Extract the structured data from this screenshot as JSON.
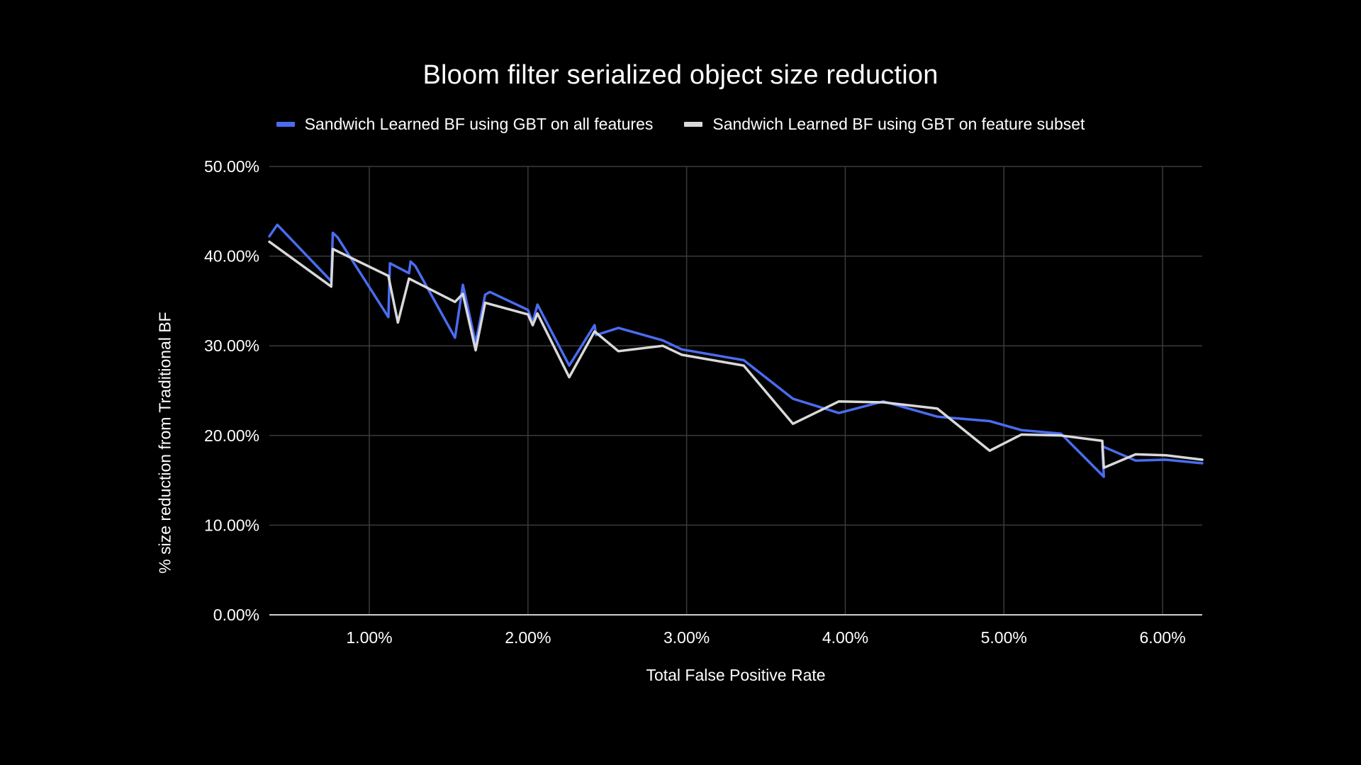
{
  "chart_data": {
    "type": "line",
    "title": "Bloom filter serialized object size reduction",
    "xlabel": "Total False Positive Rate",
    "ylabel": "% size reduction from Traditional BF",
    "xlim": [
      0.0037,
      0.0625
    ],
    "ylim": [
      0,
      0.5
    ],
    "x_ticks": [
      0.01,
      0.02,
      0.03,
      0.04,
      0.05,
      0.06
    ],
    "x_tick_labels": [
      "1.00%",
      "2.00%",
      "3.00%",
      "4.00%",
      "5.00%",
      "6.00%"
    ],
    "y_ticks": [
      0,
      0.1,
      0.2,
      0.3,
      0.4,
      0.5
    ],
    "y_tick_labels": [
      "0.00%",
      "10.00%",
      "20.00%",
      "30.00%",
      "40.00%",
      "50.00%"
    ],
    "grid": true,
    "legend_position": "top-center",
    "series": [
      {
        "name": "Sandwich Learned BF using GBT on all features",
        "color": "#4a6cf0",
        "points": [
          [
            0.0037,
            0.422
          ],
          [
            0.0042,
            0.435
          ],
          [
            0.0076,
            0.372
          ],
          [
            0.0077,
            0.426
          ],
          [
            0.008,
            0.421
          ],
          [
            0.0112,
            0.332
          ],
          [
            0.0113,
            0.392
          ],
          [
            0.0125,
            0.381
          ],
          [
            0.0126,
            0.394
          ],
          [
            0.0129,
            0.389
          ],
          [
            0.0154,
            0.309
          ],
          [
            0.0159,
            0.368
          ],
          [
            0.0167,
            0.303
          ],
          [
            0.0173,
            0.357
          ],
          [
            0.0176,
            0.36
          ],
          [
            0.02,
            0.34
          ],
          [
            0.0203,
            0.326
          ],
          [
            0.0206,
            0.346
          ],
          [
            0.0226,
            0.278
          ],
          [
            0.0242,
            0.323
          ],
          [
            0.0243,
            0.312
          ],
          [
            0.0257,
            0.32
          ],
          [
            0.0285,
            0.306
          ],
          [
            0.0297,
            0.296
          ],
          [
            0.0336,
            0.284
          ],
          [
            0.0367,
            0.241
          ],
          [
            0.0396,
            0.225
          ],
          [
            0.0424,
            0.238
          ],
          [
            0.0458,
            0.221
          ],
          [
            0.0491,
            0.216
          ],
          [
            0.0511,
            0.206
          ],
          [
            0.0536,
            0.202
          ],
          [
            0.0563,
            0.154
          ],
          [
            0.0562,
            0.188
          ],
          [
            0.0583,
            0.172
          ],
          [
            0.0602,
            0.173
          ],
          [
            0.0625,
            0.169
          ]
        ]
      },
      {
        "name": "Sandwich Learned BF using GBT on feature subset",
        "color": "#d9d9d9",
        "points": [
          [
            0.0037,
            0.416
          ],
          [
            0.0076,
            0.366
          ],
          [
            0.0077,
            0.408
          ],
          [
            0.0112,
            0.378
          ],
          [
            0.0118,
            0.326
          ],
          [
            0.0125,
            0.375
          ],
          [
            0.0154,
            0.349
          ],
          [
            0.0159,
            0.358
          ],
          [
            0.0167,
            0.295
          ],
          [
            0.0173,
            0.348
          ],
          [
            0.02,
            0.335
          ],
          [
            0.0203,
            0.323
          ],
          [
            0.0206,
            0.336
          ],
          [
            0.0226,
            0.265
          ],
          [
            0.0242,
            0.316
          ],
          [
            0.0257,
            0.294
          ],
          [
            0.0285,
            0.3
          ],
          [
            0.0297,
            0.29
          ],
          [
            0.0336,
            0.278
          ],
          [
            0.0367,
            0.213
          ],
          [
            0.0396,
            0.238
          ],
          [
            0.0424,
            0.237
          ],
          [
            0.0458,
            0.23
          ],
          [
            0.0491,
            0.183
          ],
          [
            0.0511,
            0.201
          ],
          [
            0.0536,
            0.2
          ],
          [
            0.0562,
            0.194
          ],
          [
            0.0563,
            0.164
          ],
          [
            0.0583,
            0.179
          ],
          [
            0.0602,
            0.178
          ],
          [
            0.0625,
            0.173
          ]
        ]
      }
    ]
  }
}
